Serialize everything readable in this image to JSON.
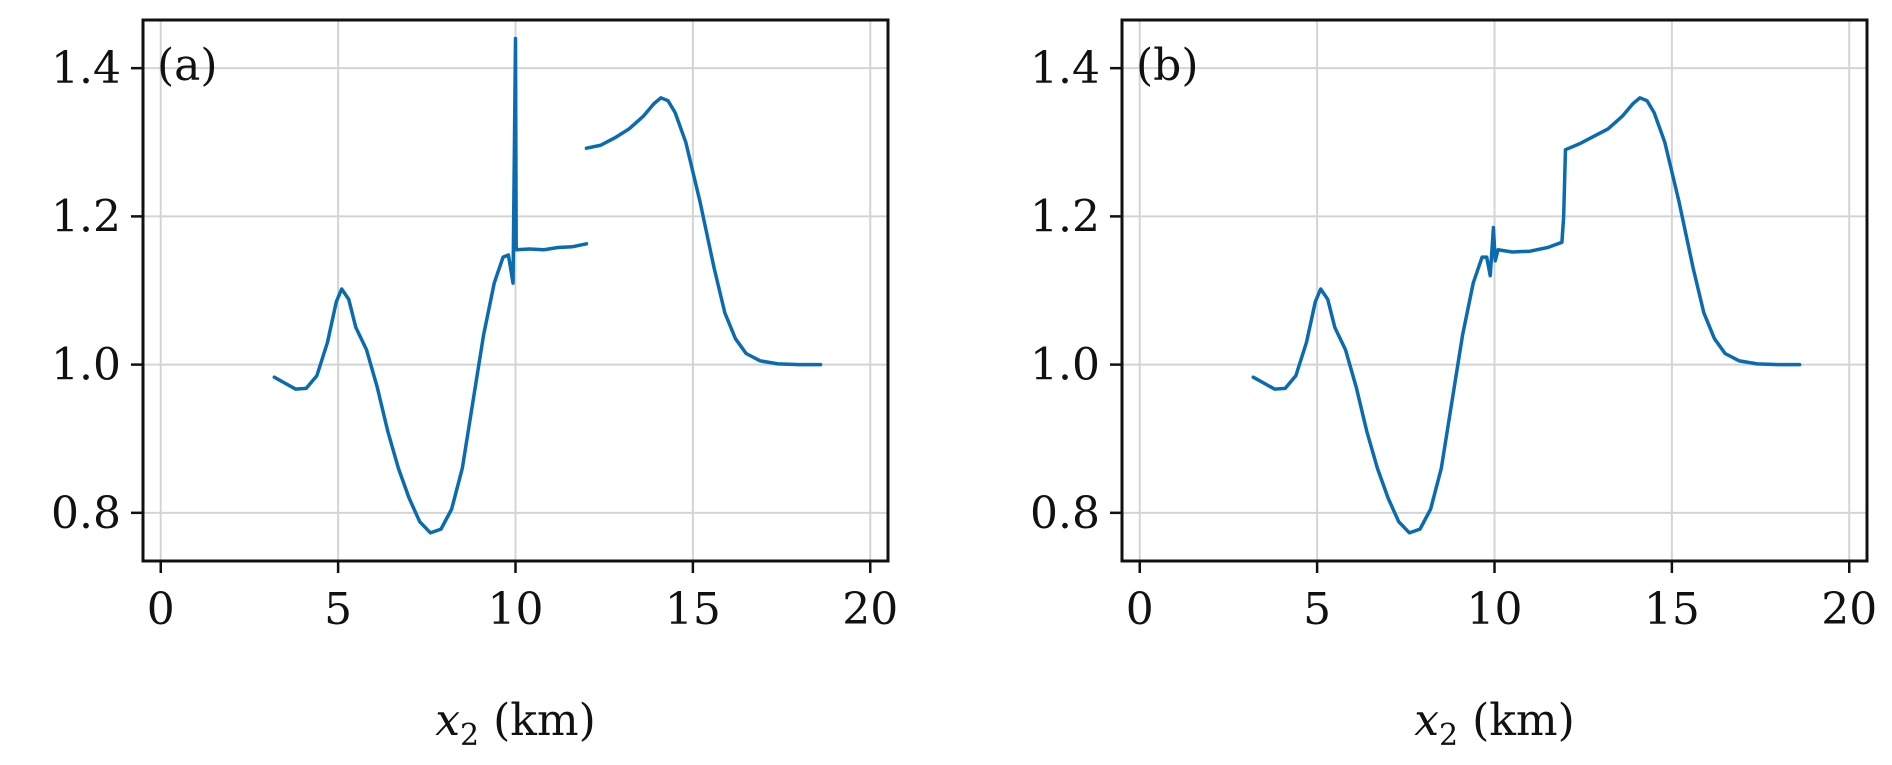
{
  "figure": {
    "background": "#ffffff",
    "accent": "#0b6bb0"
  },
  "chart_data": [
    {
      "type": "line",
      "panel_label": "(a)",
      "xlabel_var": "x",
      "xlabel_sub": "2",
      "xlabel_unit": " (km)",
      "ylabel": "",
      "xlim": [
        -0.5,
        20.5
      ],
      "ylim": [
        0.735,
        1.465
      ],
      "xticks": [
        0,
        5,
        10,
        15,
        20
      ],
      "xtick_labels": [
        "0",
        "5",
        "10",
        "15",
        "20"
      ],
      "yticks": [
        0.8,
        1.0,
        1.2,
        1.4
      ],
      "ytick_labels": [
        "0.8",
        "1.0",
        "1.2",
        "1.4"
      ],
      "grid": true,
      "legend": "none",
      "series": [
        {
          "color": "#0b6bb0",
          "segments": [
            [
              [
                3.2,
                0.983
              ],
              [
                3.5,
                0.975
              ],
              [
                3.8,
                0.967
              ],
              [
                4.1,
                0.968
              ],
              [
                4.4,
                0.985
              ],
              [
                4.7,
                1.03
              ],
              [
                4.95,
                1.085
              ],
              [
                5.1,
                1.102
              ],
              [
                5.3,
                1.088
              ],
              [
                5.5,
                1.05
              ],
              [
                5.8,
                1.02
              ],
              [
                6.1,
                0.97
              ],
              [
                6.4,
                0.91
              ],
              [
                6.7,
                0.86
              ],
              [
                7.0,
                0.82
              ],
              [
                7.3,
                0.788
              ],
              [
                7.6,
                0.773
              ],
              [
                7.9,
                0.778
              ],
              [
                8.2,
                0.805
              ],
              [
                8.5,
                0.86
              ],
              [
                8.8,
                0.95
              ],
              [
                9.1,
                1.04
              ],
              [
                9.4,
                1.11
              ],
              [
                9.65,
                1.145
              ],
              [
                9.8,
                1.148
              ],
              [
                9.93,
                1.11
              ],
              [
                10.0,
                1.44
              ],
              [
                10.02,
                1.155
              ],
              [
                10.4,
                1.156
              ],
              [
                10.8,
                1.155
              ],
              [
                11.2,
                1.158
              ],
              [
                11.6,
                1.159
              ],
              [
                12.0,
                1.163
              ]
            ],
            [
              [
                12.0,
                1.292
              ],
              [
                12.4,
                1.296
              ],
              [
                12.8,
                1.306
              ],
              [
                13.2,
                1.318
              ],
              [
                13.6,
                1.335
              ],
              [
                13.9,
                1.352
              ],
              [
                14.1,
                1.36
              ],
              [
                14.3,
                1.356
              ],
              [
                14.5,
                1.34
              ],
              [
                14.8,
                1.3
              ],
              [
                15.2,
                1.22
              ],
              [
                15.6,
                1.13
              ],
              [
                15.9,
                1.07
              ],
              [
                16.2,
                1.035
              ],
              [
                16.5,
                1.015
              ],
              [
                16.9,
                1.005
              ],
              [
                17.4,
                1.001
              ],
              [
                18.0,
                1.0
              ],
              [
                18.6,
                1.0
              ]
            ]
          ]
        }
      ]
    },
    {
      "type": "line",
      "panel_label": "(b)",
      "xlabel_var": "x",
      "xlabel_sub": "2",
      "xlabel_unit": " (km)",
      "ylabel": "",
      "xlim": [
        -0.5,
        20.5
      ],
      "ylim": [
        0.735,
        1.465
      ],
      "xticks": [
        0,
        5,
        10,
        15,
        20
      ],
      "xtick_labels": [
        "0",
        "5",
        "10",
        "15",
        "20"
      ],
      "yticks": [
        0.8,
        1.0,
        1.2,
        1.4
      ],
      "ytick_labels": [
        "0.8",
        "1.0",
        "1.2",
        "1.4"
      ],
      "grid": true,
      "legend": "none",
      "series": [
        {
          "color": "#0b6bb0",
          "segments": [
            [
              [
                3.2,
                0.983
              ],
              [
                3.5,
                0.975
              ],
              [
                3.8,
                0.967
              ],
              [
                4.1,
                0.968
              ],
              [
                4.4,
                0.985
              ],
              [
                4.7,
                1.03
              ],
              [
                4.95,
                1.085
              ],
              [
                5.1,
                1.102
              ],
              [
                5.3,
                1.088
              ],
              [
                5.5,
                1.05
              ],
              [
                5.8,
                1.02
              ],
              [
                6.1,
                0.97
              ],
              [
                6.4,
                0.91
              ],
              [
                6.7,
                0.86
              ],
              [
                7.0,
                0.82
              ],
              [
                7.3,
                0.788
              ],
              [
                7.6,
                0.773
              ],
              [
                7.9,
                0.778
              ],
              [
                8.2,
                0.805
              ],
              [
                8.5,
                0.86
              ],
              [
                8.8,
                0.95
              ],
              [
                9.1,
                1.04
              ],
              [
                9.4,
                1.11
              ],
              [
                9.65,
                1.145
              ],
              [
                9.78,
                1.145
              ],
              [
                9.88,
                1.12
              ],
              [
                9.97,
                1.185
              ],
              [
                10.02,
                1.14
              ],
              [
                10.1,
                1.155
              ],
              [
                10.5,
                1.152
              ],
              [
                11.0,
                1.153
              ],
              [
                11.5,
                1.158
              ],
              [
                11.9,
                1.165
              ],
              [
                11.95,
                1.2
              ],
              [
                12.0,
                1.29
              ],
              [
                12.4,
                1.298
              ],
              [
                12.8,
                1.308
              ],
              [
                13.2,
                1.318
              ],
              [
                13.6,
                1.335
              ],
              [
                13.9,
                1.352
              ],
              [
                14.1,
                1.36
              ],
              [
                14.3,
                1.356
              ],
              [
                14.5,
                1.34
              ],
              [
                14.8,
                1.3
              ],
              [
                15.2,
                1.22
              ],
              [
                15.6,
                1.13
              ],
              [
                15.9,
                1.07
              ],
              [
                16.2,
                1.035
              ],
              [
                16.5,
                1.015
              ],
              [
                16.9,
                1.005
              ],
              [
                17.4,
                1.001
              ],
              [
                18.0,
                1.0
              ],
              [
                18.6,
                1.0
              ]
            ]
          ]
        }
      ]
    }
  ]
}
